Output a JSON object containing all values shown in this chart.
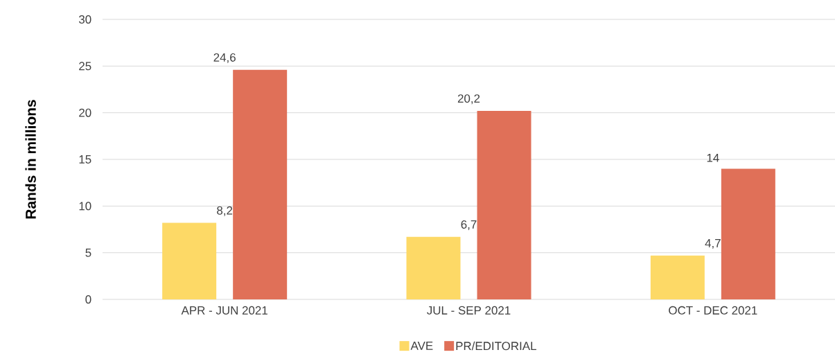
{
  "chart_data": {
    "type": "bar",
    "ylabel": "Rands in millions",
    "categories": [
      "APR - JUN 2021",
      "JUL - SEP 2021",
      "OCT - DEC 2021"
    ],
    "series": [
      {
        "name": "AVE",
        "color": "#fdd966",
        "values": [
          8.2,
          6.7,
          4.7
        ],
        "value_labels": [
          "8,2",
          "6,7",
          "4,7"
        ]
      },
      {
        "name": "PR/EDITORIAL",
        "color": "#e07058",
        "values": [
          24.6,
          20.2,
          14
        ],
        "value_labels": [
          "24,6",
          "20,2",
          "14"
        ]
      }
    ],
    "ylim": [
      0,
      30
    ],
    "yticks": [
      0,
      5,
      10,
      15,
      20,
      25,
      30
    ],
    "grid": "y",
    "legend": "bottom"
  }
}
